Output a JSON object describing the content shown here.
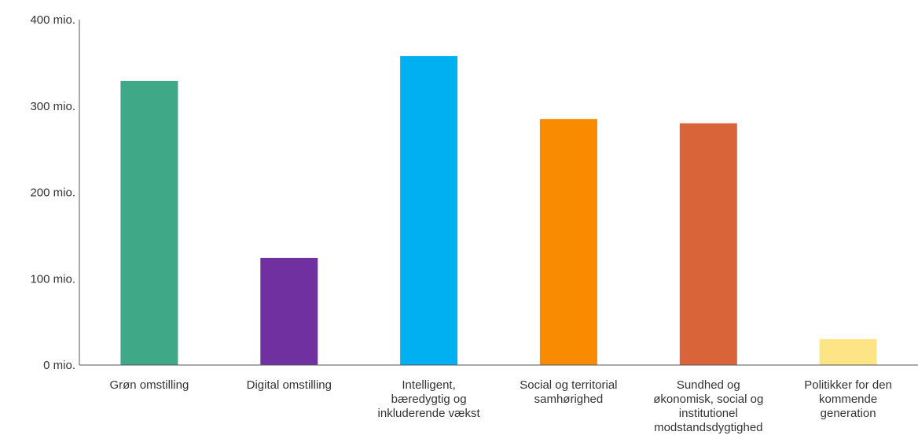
{
  "chart_data": {
    "type": "bar",
    "title": "",
    "xlabel": "",
    "ylabel": "",
    "ylim": [
      0,
      400
    ],
    "yticks": [
      0,
      100,
      200,
      300,
      400
    ],
    "ytick_labels": [
      "0 mio.",
      "100 mio.",
      "200 mio.",
      "300 mio.",
      "400 mio."
    ],
    "grid": false,
    "legend": "none",
    "categories": [
      "Grøn omstilling",
      "Digital omstilling",
      "Intelligent, bæredygtig og inkluderende vækst",
      "Social og territorial samhørighed",
      "Sundhed og økonomisk, social og institutionel modstandsdygtighed",
      "Politikker for den kommende generation"
    ],
    "category_lines": [
      [
        "Grøn omstilling"
      ],
      [
        "Digital omstilling"
      ],
      [
        "Intelligent,",
        "bæredygtig og",
        "inkluderende vækst"
      ],
      [
        "Social og territorial",
        "samhørighed"
      ],
      [
        "Sundhed og",
        "økonomisk, social og",
        "institutionel",
        "modstandsdygtighed"
      ],
      [
        "Politikker for den",
        "kommende",
        "generation"
      ]
    ],
    "values": [
      329,
      124,
      358,
      285,
      280,
      30
    ],
    "colors": [
      "#3fa886",
      "#7030a0",
      "#00b0f0",
      "#f98b00",
      "#d9643a",
      "#fde585"
    ]
  }
}
